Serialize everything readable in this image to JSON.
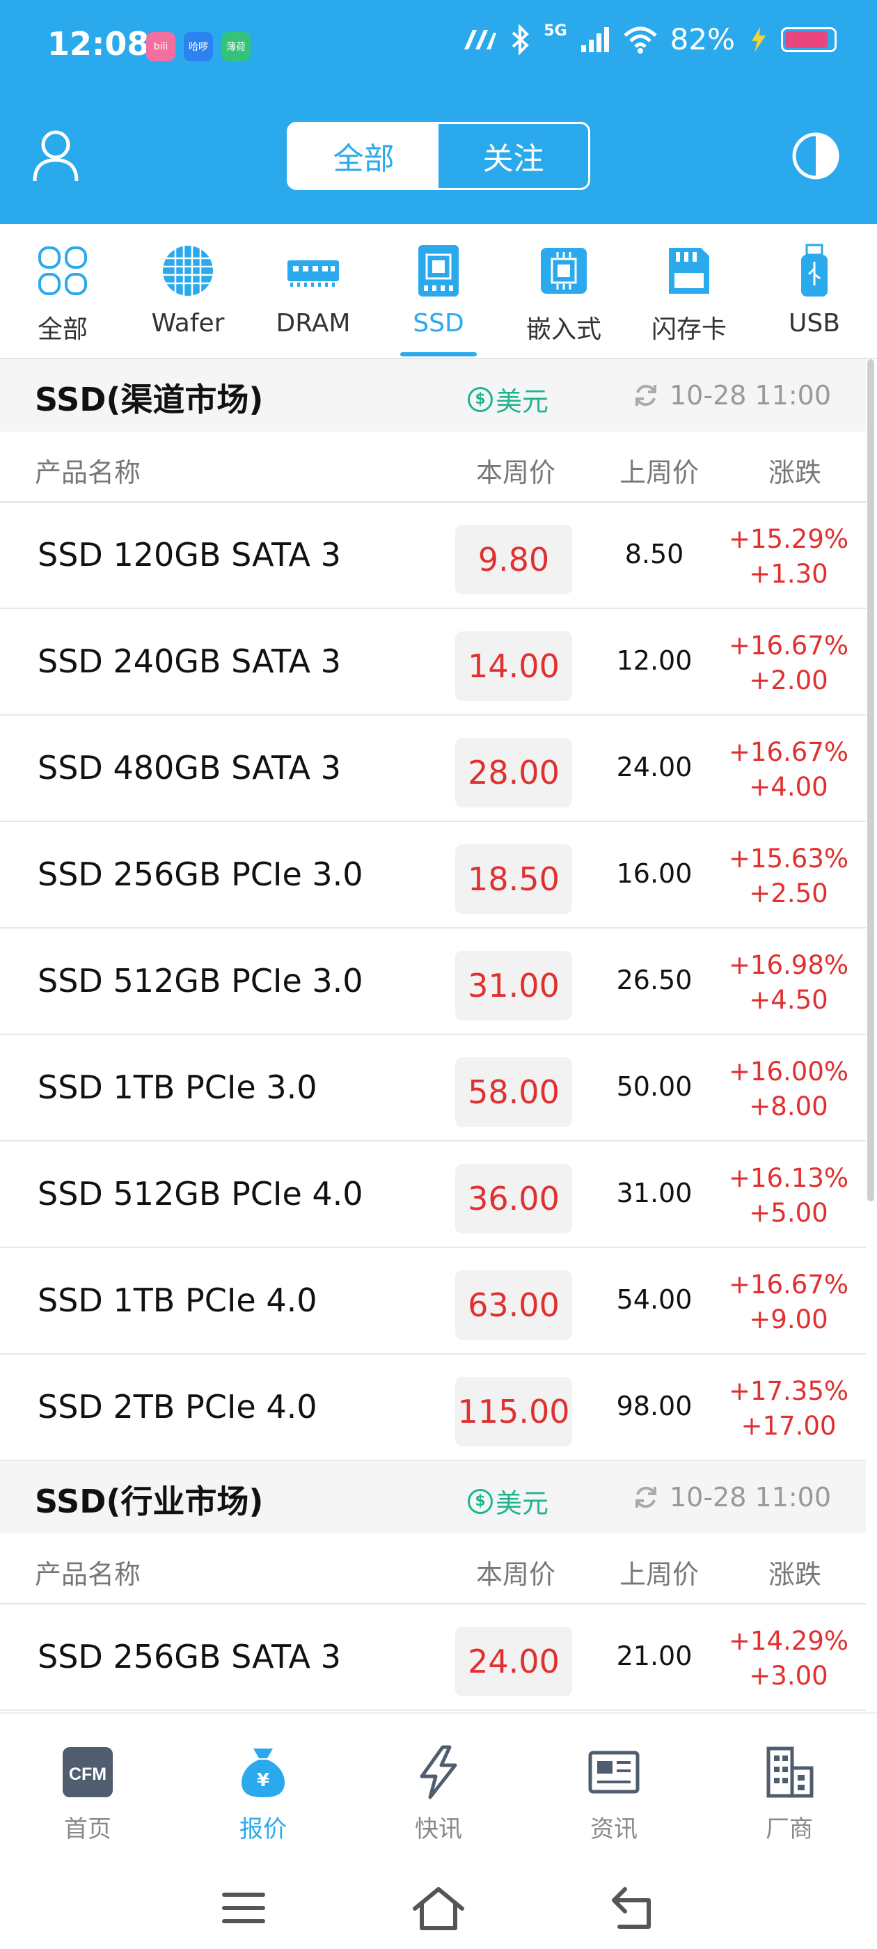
{
  "status_bar": {
    "time": "12:08",
    "apps": [
      {
        "name": "bilibili",
        "label": "bili",
        "color": "#f36fa0"
      },
      {
        "name": "hello",
        "label": "哈啰",
        "color": "#2b82f0"
      },
      {
        "name": "bohe",
        "label": "薄荷",
        "color": "#33c37a"
      }
    ],
    "network": "5G",
    "battery": "82%"
  },
  "header": {
    "segments": [
      {
        "label": "全部",
        "active": true
      },
      {
        "label": "关注",
        "active": false
      }
    ]
  },
  "categories": [
    {
      "label": "全部",
      "icon": "grid-icon",
      "active": false
    },
    {
      "label": "Wafer",
      "icon": "wafer-icon",
      "active": false
    },
    {
      "label": "DRAM",
      "icon": "dram-icon",
      "active": false
    },
    {
      "label": "SSD",
      "icon": "ssd-icon",
      "active": true
    },
    {
      "label": "嵌入式",
      "icon": "chip-icon",
      "active": false
    },
    {
      "label": "闪存卡",
      "icon": "sd-card-icon",
      "active": false
    },
    {
      "label": "USB",
      "icon": "usb-icon",
      "active": false
    }
  ],
  "columns": {
    "name": "产品名称",
    "current": "本周价",
    "previous": "上周价",
    "change": "涨跌"
  },
  "sections": [
    {
      "title": "SSD(渠道市场)",
      "currency": "美元",
      "updated": "10-28 11:00",
      "rows": [
        {
          "name": "SSD 120GB SATA 3",
          "current": "9.80",
          "previous": "8.50",
          "pct": "+15.29%",
          "diff": "+1.30"
        },
        {
          "name": "SSD 240GB SATA 3",
          "current": "14.00",
          "previous": "12.00",
          "pct": "+16.67%",
          "diff": "+2.00"
        },
        {
          "name": "SSD 480GB SATA 3",
          "current": "28.00",
          "previous": "24.00",
          "pct": "+16.67%",
          "diff": "+4.00"
        },
        {
          "name": "SSD 256GB PCIe 3.0",
          "current": "18.50",
          "previous": "16.00",
          "pct": "+15.63%",
          "diff": "+2.50"
        },
        {
          "name": "SSD 512GB PCIe 3.0",
          "current": "31.00",
          "previous": "26.50",
          "pct": "+16.98%",
          "diff": "+4.50"
        },
        {
          "name": "SSD 1TB PCIe 3.0",
          "current": "58.00",
          "previous": "50.00",
          "pct": "+16.00%",
          "diff": "+8.00"
        },
        {
          "name": "SSD 512GB PCIe 4.0",
          "current": "36.00",
          "previous": "31.00",
          "pct": "+16.13%",
          "diff": "+5.00"
        },
        {
          "name": "SSD 1TB PCIe 4.0",
          "current": "63.00",
          "previous": "54.00",
          "pct": "+16.67%",
          "diff": "+9.00"
        },
        {
          "name": "SSD 2TB PCIe 4.0",
          "current": "115.00",
          "previous": "98.00",
          "pct": "+17.35%",
          "diff": "+17.00"
        }
      ]
    },
    {
      "title": "SSD(行业市场)",
      "currency": "美元",
      "updated": "10-28 11:00",
      "rows": [
        {
          "name": "SSD 256GB SATA 3",
          "current": "24.00",
          "previous": "21.00",
          "pct": "+14.29%",
          "diff": "+3.00"
        }
      ]
    }
  ],
  "bottom_nav": [
    {
      "label": "首页",
      "icon": "cfm-logo-icon",
      "active": false,
      "badge": "CFM"
    },
    {
      "label": "报价",
      "icon": "money-bag-icon",
      "active": true,
      "badge": "¥"
    },
    {
      "label": "快讯",
      "icon": "lightning-icon",
      "active": false
    },
    {
      "label": "资讯",
      "icon": "newspaper-icon",
      "active": false
    },
    {
      "label": "厂商",
      "icon": "building-icon",
      "active": false
    }
  ],
  "colors": {
    "accent": "#2aa9ec",
    "up": "#e0302f",
    "currency": "#1fb48e"
  }
}
